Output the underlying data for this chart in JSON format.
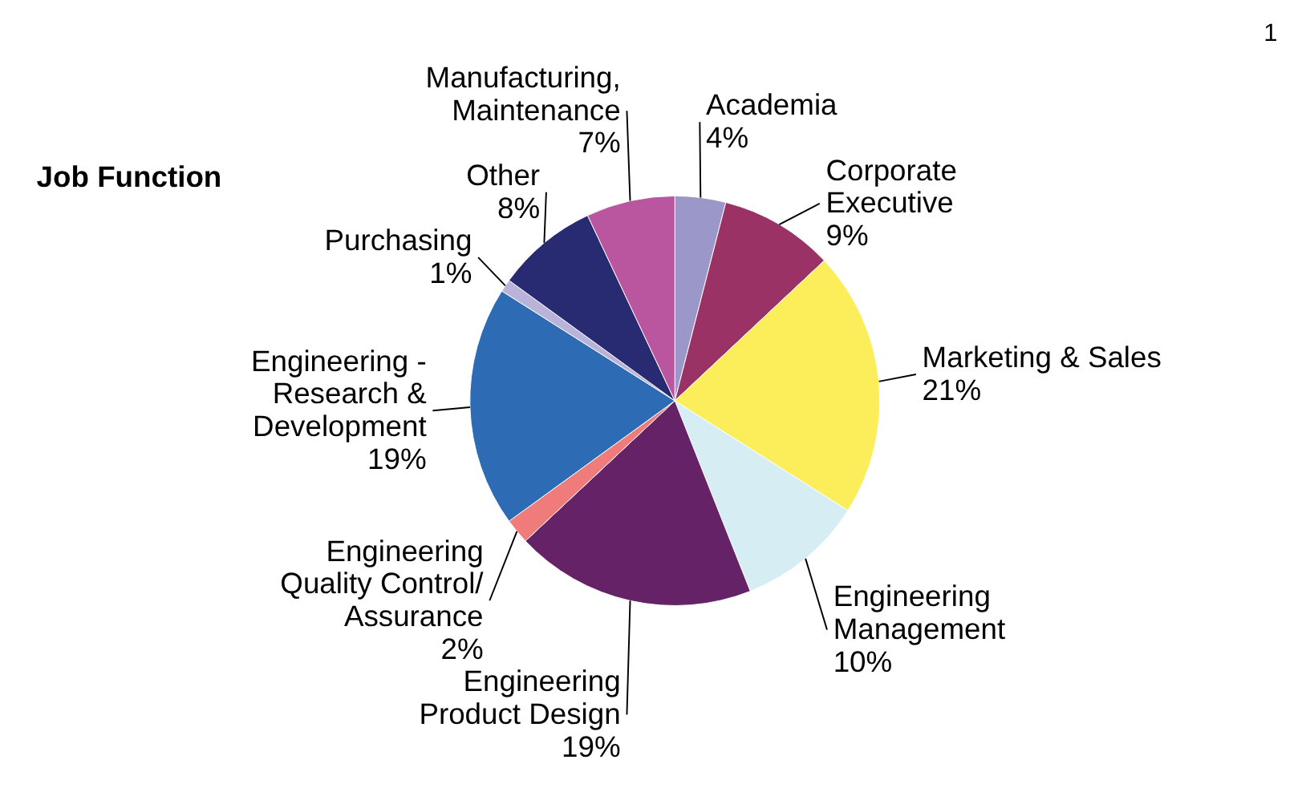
{
  "chart_data": {
    "type": "pie",
    "title": "Job Function",
    "annotations": [
      "1"
    ],
    "categories": [
      "Academia",
      "Corporate\nExecutive",
      "Marketing & Sales",
      "Engineering\nManagement",
      "Engineering\nProduct Design",
      "Engineering\nQuality Control/\nAssurance",
      "Engineering -\nResearch &\nDevelopment",
      "Purchasing",
      "Other",
      "Manufacturing,\nMaintenance"
    ],
    "values": [
      4,
      9,
      21,
      10,
      19,
      2,
      19,
      1,
      8,
      7
    ],
    "value_labels": [
      "4%",
      "9%",
      "21%",
      "10%",
      "19%",
      "2%",
      "19%",
      "1%",
      "8%",
      "7%"
    ],
    "colors": [
      "#9b97c9",
      "#9b3266",
      "#fbee5a",
      "#d5edf3",
      "#662266",
      "#f07b7b",
      "#2e6bb5",
      "#b9b3d9",
      "#282a72",
      "#b9569f"
    ]
  }
}
